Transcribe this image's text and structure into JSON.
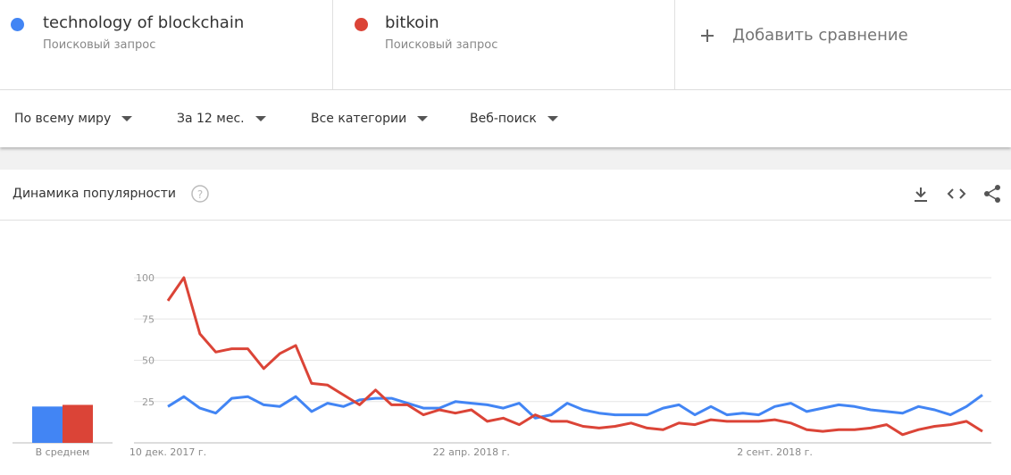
{
  "terms": [
    {
      "name": "technology of blockchain",
      "sub": "Поисковый запрос"
    },
    {
      "name": "bitkoin",
      "sub": "Поисковый запрос"
    }
  ],
  "add_comparison": "Добавить сравнение",
  "filters": [
    "По всему миру",
    "За 12 мес.",
    "Все категории",
    "Веб-поиск"
  ],
  "section_title": "Динамика популярности",
  "chart_data": {
    "type": "line",
    "categories": [
      "10 дек. 2017 г.",
      null,
      null,
      null,
      null,
      null,
      null,
      null,
      null,
      null,
      null,
      null,
      null,
      null,
      null,
      null,
      null,
      null,
      null,
      "22 апр. 2018 г.",
      null,
      null,
      null,
      null,
      null,
      null,
      null,
      null,
      null,
      null,
      null,
      null,
      null,
      null,
      null,
      null,
      null,
      null,
      "2 сент. 2018 г.",
      null,
      null,
      null,
      null,
      null,
      null,
      null,
      null,
      null,
      null,
      null,
      null,
      null
    ],
    "series": [
      {
        "name": "technology of blockchain",
        "color": "#4285f4",
        "values": [
          22,
          28,
          21,
          18,
          27,
          28,
          23,
          22,
          28,
          19,
          24,
          22,
          26,
          27,
          27,
          24,
          21,
          21,
          25,
          24,
          23,
          21,
          24,
          15,
          17,
          24,
          20,
          18,
          17,
          17,
          17,
          21,
          23,
          17,
          22,
          17,
          18,
          17,
          22,
          24,
          19,
          21,
          23,
          22,
          20,
          19,
          18,
          22,
          20,
          17,
          22,
          29
        ]
      },
      {
        "name": "bitkoin",
        "color": "#db4437",
        "values": [
          86,
          100,
          66,
          55,
          57,
          57,
          45,
          54,
          59,
          36,
          35,
          29,
          23,
          32,
          23,
          23,
          17,
          20,
          18,
          20,
          13,
          15,
          11,
          17,
          13,
          13,
          10,
          9,
          10,
          12,
          9,
          8,
          12,
          11,
          14,
          13,
          13,
          13,
          14,
          12,
          8,
          7,
          8,
          8,
          9,
          11,
          5,
          8,
          10,
          11,
          13,
          7
        ]
      }
    ],
    "ylim": [
      0,
      100
    ],
    "yticks": [
      25,
      50,
      75,
      100
    ],
    "grid": true,
    "average": {
      "label": "В среднем",
      "values": [
        22,
        23
      ]
    }
  }
}
